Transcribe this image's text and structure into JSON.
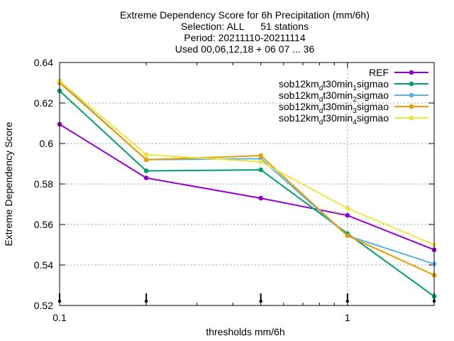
{
  "chart_data": {
    "type": "line",
    "title_lines": [
      "Extreme Dependency Score  for 6h Precipitation (mm/6h)",
      "Selection: ALL      51 stations",
      "Period: 20211110-20211114",
      "Used 00,06,12,18 + 06 07 ... 36"
    ],
    "xlabel": "thresholds mm/6h",
    "ylabel": "Extreme Dependency Score",
    "x_scale": "log",
    "xlim": [
      0.1,
      2
    ],
    "ylim": [
      0.52,
      0.64
    ],
    "x_ticks": [
      {
        "value": 0.1,
        "label": "0.1"
      },
      {
        "value": 1,
        "label": "1"
      }
    ],
    "y_ticks": [
      {
        "value": 0.52,
        "label": "0.52"
      },
      {
        "value": 0.54,
        "label": "0.54"
      },
      {
        "value": 0.56,
        "label": "0.56"
      },
      {
        "value": 0.58,
        "label": "0.58"
      },
      {
        "value": 0.6,
        "label": "0.6"
      },
      {
        "value": 0.62,
        "label": "0.62"
      },
      {
        "value": 0.64,
        "label": "0.64"
      }
    ],
    "grid": true,
    "legend_position": "top-right",
    "x": [
      0.1,
      0.2,
      0.5,
      1,
      2
    ],
    "series": [
      {
        "name": "REF",
        "legend": {
          "prefix": "REF"
        },
        "color": "#9400d3",
        "values": [
          0.6095,
          0.583,
          0.573,
          0.5645,
          0.5475
        ]
      },
      {
        "name": "sob12km_dt30min_1sigmao",
        "legend": {
          "prefix": "sob12km",
          "sub1": "d",
          "mid": "t30min",
          "sub2": "1",
          "suffix": "sigmao"
        },
        "color": "#009e73",
        "values": [
          0.626,
          0.5865,
          0.587,
          0.5555,
          0.5245
        ]
      },
      {
        "name": "sob12km_dt30min_2sigmao",
        "legend": {
          "prefix": "sob12km",
          "sub1": "d",
          "mid": "t30min",
          "sub2": "2",
          "suffix": "sigmao"
        },
        "color": "#56b4e9",
        "values": [
          0.6305,
          0.592,
          0.5925,
          0.5545,
          0.5405
        ]
      },
      {
        "name": "sob12km_dt30min_3sigmao",
        "legend": {
          "prefix": "sob12km",
          "sub1": "d",
          "mid": "t30min",
          "sub2": "3",
          "suffix": "sigmao"
        },
        "color": "#e69f00",
        "values": [
          0.63,
          0.592,
          0.594,
          0.5545,
          0.535
        ]
      },
      {
        "name": "sob12km_dt30min_4sigmao",
        "legend": {
          "prefix": "sob12km",
          "sub1": "d",
          "mid": "t30min",
          "sub2": "4",
          "suffix": "sigmao"
        },
        "color": "#f0e442",
        "values": [
          0.631,
          0.5945,
          0.591,
          0.568,
          0.55
        ]
      }
    ]
  }
}
